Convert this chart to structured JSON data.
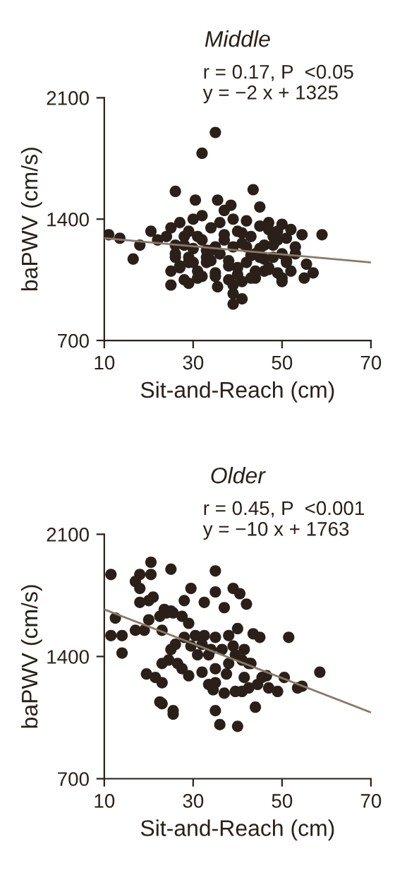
{
  "chart_data": [
    {
      "type": "scatter",
      "title": "Middle",
      "xlabel": "Sit-and-Reach (cm)",
      "ylabel": "baPWV (cm/s)",
      "xlim": [
        10,
        70
      ],
      "ylim": [
        700,
        2100
      ],
      "xticks": [
        10,
        30,
        50,
        70
      ],
      "yticks": [
        700,
        1400,
        2100
      ],
      "grid": false,
      "annotations": [
        "r = 0.17, P  <0.05",
        "y = −2 x + 1325"
      ],
      "series": [
        {
          "color": "#2b2019",
          "marker": "circle",
          "x": [
            35,
            32,
            26,
            43.5,
            35.5,
            30.5,
            38.5,
            45,
            11,
            13.5,
            16.5,
            18,
            20.5,
            59,
            54.5,
            55.5,
            55,
            39,
            41,
            39,
            25,
            29,
            35.5,
            50,
            22,
            24,
            25,
            26,
            27,
            28,
            29,
            30,
            31,
            32,
            33,
            34,
            35,
            36,
            37,
            38,
            39,
            40,
            41,
            42,
            43,
            44,
            45,
            46,
            47,
            48,
            49,
            50,
            51,
            52,
            53,
            25,
            26,
            27,
            28,
            29,
            30,
            31,
            32,
            33,
            34,
            35,
            36,
            37,
            38,
            39,
            40,
            41,
            42,
            43,
            44,
            45,
            46,
            47,
            48,
            49,
            50,
            51,
            52,
            26,
            28,
            30,
            32,
            34,
            36,
            38,
            40,
            42,
            44,
            46,
            48,
            50,
            27,
            31,
            33,
            37,
            41,
            43,
            47,
            49,
            35,
            39,
            45,
            29,
            51,
            53,
            57,
            47
          ],
          "values": [
            1900,
            1780,
            1560,
            1570,
            1510,
            1510,
            1480,
            1470,
            1310,
            1290,
            1170,
            1250,
            1330,
            1310,
            1310,
            1140,
            1060,
            910,
            940,
            970,
            1020,
            1030,
            1010,
            1060,
            1280,
            1300,
            1350,
            1200,
            1380,
            1250,
            1150,
            1400,
            1300,
            1420,
            1180,
            1350,
            1240,
            1380,
            1450,
            1160,
            1400,
            1330,
            1040,
            1390,
            1300,
            1200,
            1360,
            1250,
            1380,
            1300,
            1330,
            1370,
            1290,
            1340,
            1200,
            1100,
            1250,
            1120,
            1300,
            1180,
            1230,
            1100,
            1280,
            1150,
            1220,
            1090,
            1200,
            1280,
            1130,
            1240,
            1080,
            1260,
            1150,
            1190,
            1100,
            1230,
            1170,
            1120,
            1250,
            1090,
            1200,
            1160,
            1100,
            1180,
            1050,
            1150,
            1070,
            1160,
            1200,
            1050,
            1120,
            1240,
            1060,
            1100,
            1180,
            1040,
            1130,
            1060,
            1220,
            1310,
            1320,
            1060,
            1340,
            1280,
            1070,
            1020,
            1180,
            1330,
            1150,
            1240,
            1090,
            1110
          ]
        },
        {
          "type": "line",
          "color": "#8a7968",
          "x": [
            10,
            70
          ],
          "values": [
            1290,
            1150
          ]
        }
      ]
    },
    {
      "type": "scatter",
      "title": "Older",
      "xlabel": "Sit-and-Reach (cm)",
      "ylabel": "baPWV (cm/s)",
      "xlim": [
        10,
        70
      ],
      "ylim": [
        700,
        2100
      ],
      "xticks": [
        10,
        30,
        50,
        70
      ],
      "yticks": [
        700,
        1400,
        2100
      ],
      "grid": false,
      "annotations": [
        "r = 0.45, P  <0.001",
        "y = −10 x + 1763"
      ],
      "series": [
        {
          "color": "#2b2019",
          "marker": "circle",
          "x": [
            11.5,
            20.5,
            25,
            35,
            18,
            20.5,
            17,
            29.5,
            39,
            40.5,
            35,
            28,
            32.5,
            42,
            18,
            20,
            21,
            37,
            12.5,
            23.5,
            25,
            11.5,
            14,
            17,
            19,
            20,
            23,
            27.5,
            29,
            28,
            30.5,
            32.5,
            35,
            38,
            40,
            43.5,
            45,
            51.5,
            19.5,
            21.5,
            23,
            22.5,
            23,
            25.5,
            25.5,
            23,
            26.5,
            27.5,
            29,
            32,
            33.5,
            35,
            33.5,
            37,
            35,
            36,
            40,
            38,
            39.5,
            41.5,
            42.5,
            44,
            44.5,
            47,
            49,
            50.5,
            53.5,
            54.5,
            58.5,
            46.5,
            29.5,
            32,
            34,
            36.5,
            39,
            41.5,
            39.5,
            41,
            43,
            31,
            26,
            25,
            24.5,
            25.5,
            24,
            22.5,
            18,
            14,
            35,
            37.5,
            45.5,
            42.5,
            41,
            34.5
          ],
          "values": [
            1870,
            1940,
            1900,
            1890,
            1870,
            1870,
            1830,
            1790,
            1790,
            1760,
            1770,
            1720,
            1710,
            1700,
            1710,
            1720,
            1740,
            1680,
            1620,
            1670,
            1660,
            1520,
            1420,
            1550,
            1550,
            1610,
            1550,
            1630,
            1590,
            1510,
            1520,
            1520,
            1510,
            1520,
            1560,
            1530,
            1510,
            1510,
            1300,
            1280,
            1250,
            1140,
            1130,
            1090,
            1070,
            1360,
            1360,
            1330,
            1290,
            1310,
            1410,
            1250,
            1240,
            1190,
            1090,
            1010,
            1000,
            1360,
            1200,
            1280,
            1360,
            1110,
            1240,
            1220,
            1200,
            1280,
            1220,
            1230,
            1310,
            1290,
            1460,
            1470,
            1440,
            1440,
            1460,
            1440,
            1410,
            1380,
            1360,
            1410,
            1470,
            1440,
            1380,
            1650,
            1650,
            1630,
            1790,
            1520,
            1330,
            1300,
            1280,
            1220,
            1200,
            1210
          ]
        },
        {
          "type": "line",
          "color": "#8a7968",
          "x": [
            10,
            70
          ],
          "values": [
            1670,
            1080
          ]
        }
      ]
    }
  ]
}
